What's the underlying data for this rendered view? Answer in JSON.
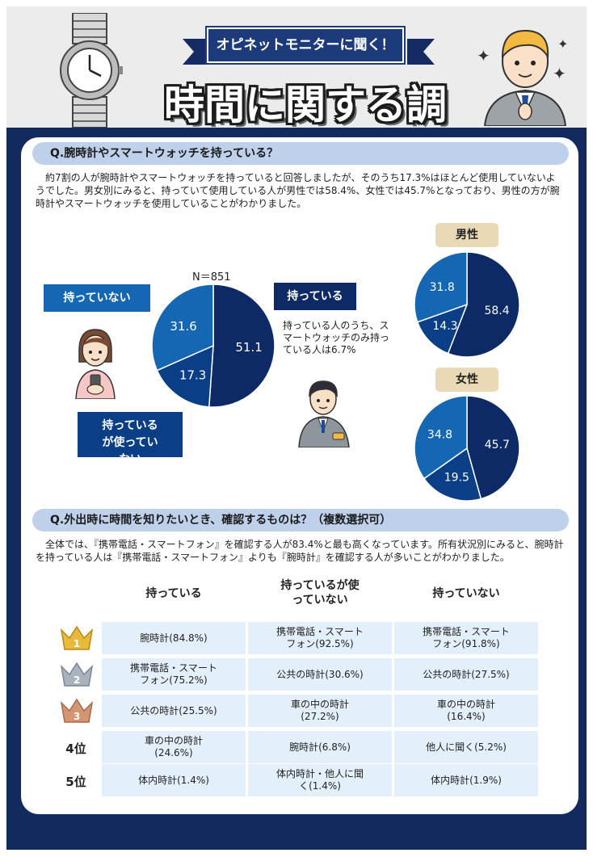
{
  "header": {
    "banner": "オピネットモニターに聞く！",
    "title": "時間に関する調査"
  },
  "q1": {
    "question": "Q.腕時計やスマートウォッチを持っている？",
    "description": "約7割の人が腕時計やスマートウォッチを持っていると回答しましたが、そのうち17.3%はほとんど使用していないようでした。男女別にみると、持っていて使用している人が男性では58.4%、女性では45.7%となっており、男性の方が腕時計やスマートウォッチを使用していることがわかりました。",
    "callout_have": "持っている",
    "callout_not_have": "持っていない",
    "callout_unused": "持っているが使っていない",
    "note": "持っている人のうち、スマートウォッチのみ持っている人は6.7%",
    "male_label": "男性",
    "female_label": "女性"
  },
  "colors": {
    "have": "#0d2a66",
    "unused": "#0a3f87",
    "not_have": "#1667b3",
    "navy": "#132a5e",
    "cell": "#e3effa"
  },
  "chart_data": [
    {
      "type": "pie",
      "n_label": "N＝851",
      "categories": [
        "持っている",
        "持っているが使っていない",
        "持っていない"
      ],
      "values": [
        51.1,
        17.3,
        31.6
      ]
    },
    {
      "type": "pie",
      "title": "男性",
      "categories": [
        "持っている",
        "持っているが使っていない",
        "持っていない"
      ],
      "values": [
        58.4,
        14.3,
        31.8
      ]
    },
    {
      "type": "pie",
      "title": "女性",
      "categories": [
        "持っている",
        "持っているが使っていない",
        "持っていない"
      ],
      "values": [
        45.7,
        19.5,
        34.8
      ]
    }
  ],
  "q2": {
    "question": "Q.外出時に時間を知りたいとき、確認するものは？（複数選択可）",
    "description": "全体では、『携帯電話・スマートフォン』を確認する人が83.4%と最も高くなっています。所有状況別にみると、腕時計を持っている人は『携帯電話・スマートフォン』よりも『腕時計』を確認する人が多いことがわかりました。",
    "columns": [
      "持っている",
      "持っているが使っていない",
      "持っていない"
    ],
    "ranks": [
      "1",
      "2",
      "3",
      "4位",
      "5位"
    ],
    "rows": [
      [
        "腕時計(84.8%)",
        "携帯電話・スマートフォン(92.5%)",
        "携帯電話・スマートフォン(91.8%)"
      ],
      [
        "携帯電話・スマートフォン(75.2%)",
        "公共の時計(30.6%)",
        "公共の時計(27.5%)"
      ],
      [
        "公共の時計(25.5%)",
        "車の中の時計(27.2%)",
        "車の中の時計(16.4%)"
      ],
      [
        "車の中の時計(24.6%)",
        "腕時計(6.8%)",
        "他人に聞く(5.2%)"
      ],
      [
        "体内時計(1.4%)",
        "体内時計・他人に聞く(1.4%)",
        "体内時計(1.9%)"
      ]
    ]
  }
}
